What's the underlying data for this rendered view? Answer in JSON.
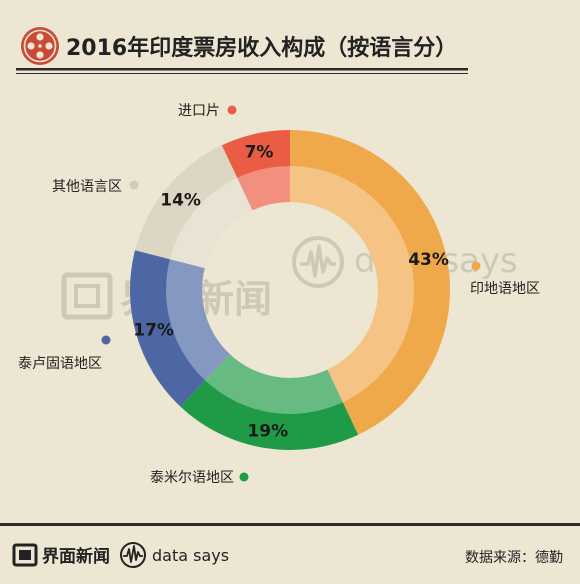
{
  "colors": {
    "background": "#ece6d3",
    "title_text": "#222222",
    "rule": "#2b2b2b",
    "logo_red": "#c94a36",
    "watermark": "#c9c4b2"
  },
  "header": {
    "title": "2016年印度票房收入构成（按语言分）",
    "icon": "film-reel-icon"
  },
  "watermark": {
    "jiemian_text": "界面新闻",
    "datasays_text": "data says"
  },
  "footer": {
    "brand_text": "界面新闻",
    "datasays_text": "data says",
    "source": "数据来源：德勤"
  },
  "chart_data": {
    "type": "pie",
    "style": "donut",
    "title": "2016年印度票房收入构成（按语言分）",
    "unit": "%",
    "legend_position": "labels-around-ring",
    "slices": [
      {
        "name": "印地语地区",
        "value": 43,
        "label": "43%",
        "color": "#f0a94a"
      },
      {
        "name": "泰米尔语地区",
        "value": 19,
        "label": "19%",
        "color": "#1f9a47"
      },
      {
        "name": "泰卢固语地区",
        "value": 17,
        "label": "17%",
        "color": "#4c67a4"
      },
      {
        "name": "其他语言区",
        "value": 14,
        "label": "14%",
        "color": "#ddd6c2"
      },
      {
        "name": "进口片",
        "value": 7,
        "label": "7%",
        "color": "#ea5c43"
      }
    ]
  }
}
